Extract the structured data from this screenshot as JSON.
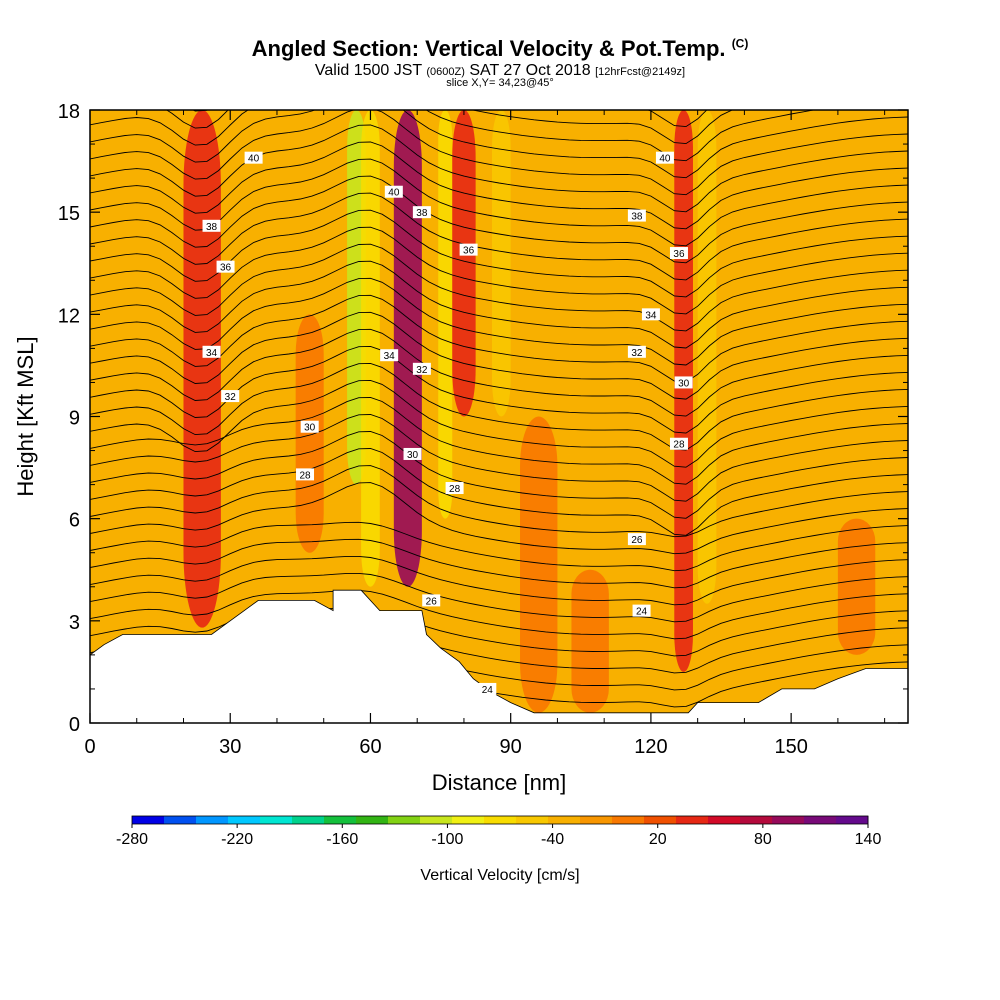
{
  "titles": {
    "main": "Angled Section: Vertical Velocity & Pot.Temp.",
    "copyright_mark": "(C)",
    "valid_prefix": "Valid 1500 JST",
    "valid_utc": "(0600Z)",
    "valid_date": "SAT 27 Oct 2018",
    "valid_fcst": "[12hrFcst@2149z]",
    "slice": "slice X,Y= 34,23@45°"
  },
  "chart_data": {
    "type": "heatmap",
    "title": "Angled Section: Vertical Velocity & Pot.Temp.",
    "xlabel": "Distance [nm]",
    "ylabel": "Height [Kft MSL]",
    "xlim": [
      0,
      175
    ],
    "ylim": [
      0,
      18
    ],
    "x_ticks": [
      "0",
      "30",
      "60",
      "90",
      "120",
      "150"
    ],
    "y_ticks": [
      "0",
      "3",
      "6",
      "9",
      "12",
      "15",
      "18"
    ],
    "background_fill_color": "#F8B000",
    "terrain_color": "#FFFFFF",
    "terrain_profile": [
      {
        "x": 0,
        "top": 2.0
      },
      {
        "x": 3,
        "top": 2.3
      },
      {
        "x": 7,
        "top": 2.6
      },
      {
        "x": 14,
        "top": 2.6
      },
      {
        "x": 26,
        "top": 2.6
      },
      {
        "x": 30,
        "top": 3.0
      },
      {
        "x": 33,
        "top": 3.3
      },
      {
        "x": 36,
        "top": 3.6
      },
      {
        "x": 48,
        "top": 3.6
      },
      {
        "x": 52,
        "top": 3.3
      },
      {
        "x": 52,
        "top": 3.9
      },
      {
        "x": 58,
        "top": 3.9
      },
      {
        "x": 62,
        "top": 3.3
      },
      {
        "x": 71,
        "top": 3.3
      },
      {
        "x": 72,
        "top": 2.6
      },
      {
        "x": 75,
        "top": 2.2
      },
      {
        "x": 79,
        "top": 1.8
      },
      {
        "x": 82,
        "top": 1.3
      },
      {
        "x": 86,
        "top": 0.9
      },
      {
        "x": 90,
        "top": 0.6
      },
      {
        "x": 95,
        "top": 0.3
      },
      {
        "x": 128,
        "top": 0.3
      },
      {
        "x": 130,
        "top": 0.6
      },
      {
        "x": 143,
        "top": 0.6
      },
      {
        "x": 148,
        "top": 1.0
      },
      {
        "x": 155,
        "top": 1.0
      },
      {
        "x": 160,
        "top": 1.3
      },
      {
        "x": 166,
        "top": 1.6
      },
      {
        "x": 175,
        "top": 1.6
      }
    ],
    "velocity_bands": [
      {
        "x_center": 24,
        "width": 8,
        "value": 60,
        "y_from": 2.8,
        "y_to": 18
      },
      {
        "x_center": 47,
        "width": 6,
        "value": 20,
        "y_from": 5,
        "y_to": 12
      },
      {
        "x_center": 57,
        "width": 4,
        "value": -100,
        "y_from": 7,
        "y_to": 18
      },
      {
        "x_center": 60,
        "width": 4,
        "value": -60,
        "y_from": 4,
        "y_to": 18
      },
      {
        "x_center": 68,
        "width": 6,
        "value": 120,
        "y_from": 4,
        "y_to": 18
      },
      {
        "x_center": 76,
        "width": 3,
        "value": -60,
        "y_from": 6,
        "y_to": 18
      },
      {
        "x_center": 80,
        "width": 5,
        "value": 60,
        "y_from": 9,
        "y_to": 18
      },
      {
        "x_center": 88,
        "width": 4,
        "value": -40,
        "y_from": 9,
        "y_to": 18
      },
      {
        "x_center": 96,
        "width": 8,
        "value": 20,
        "y_from": 0.3,
        "y_to": 9
      },
      {
        "x_center": 107,
        "width": 8,
        "value": 20,
        "y_from": 0.3,
        "y_to": 4.5
      },
      {
        "x_center": 127,
        "width": 4,
        "value": 60,
        "y_from": 1.5,
        "y_to": 18
      },
      {
        "x_center": 132,
        "width": 4,
        "value": -40,
        "y_from": 3.5,
        "y_to": 18
      },
      {
        "x_center": 164,
        "width": 8,
        "value": 20,
        "y_from": 2,
        "y_to": 6
      }
    ],
    "contour_levels": [
      24,
      26,
      28,
      30,
      32,
      34,
      36,
      38,
      40
    ],
    "contour_labels": [
      {
        "text": "40",
        "x": 35,
        "y": 16.6
      },
      {
        "text": "38",
        "x": 26,
        "y": 14.6
      },
      {
        "text": "36",
        "x": 29,
        "y": 13.4
      },
      {
        "text": "34",
        "x": 26,
        "y": 10.9
      },
      {
        "text": "32",
        "x": 30,
        "y": 9.6
      },
      {
        "text": "30",
        "x": 47,
        "y": 8.7
      },
      {
        "text": "28",
        "x": 46,
        "y": 7.3
      },
      {
        "text": "40",
        "x": 65,
        "y": 15.6
      },
      {
        "text": "38",
        "x": 71,
        "y": 15.0
      },
      {
        "text": "36",
        "x": 81,
        "y": 13.9
      },
      {
        "text": "34",
        "x": 64,
        "y": 10.8
      },
      {
        "text": "32",
        "x": 71,
        "y": 10.4
      },
      {
        "text": "30",
        "x": 69,
        "y": 7.9
      },
      {
        "text": "28",
        "x": 78,
        "y": 6.9
      },
      {
        "text": "26",
        "x": 73,
        "y": 3.6
      },
      {
        "text": "24",
        "x": 85,
        "y": 1.0
      },
      {
        "text": "40",
        "x": 123,
        "y": 16.6
      },
      {
        "text": "38",
        "x": 117,
        "y": 14.9
      },
      {
        "text": "36",
        "x": 126,
        "y": 13.8
      },
      {
        "text": "34",
        "x": 120,
        "y": 12.0
      },
      {
        "text": "32",
        "x": 117,
        "y": 10.9
      },
      {
        "text": "30",
        "x": 127,
        "y": 10.0
      },
      {
        "text": "28",
        "x": 126,
        "y": 8.2
      },
      {
        "text": "26",
        "x": 117,
        "y": 5.4
      },
      {
        "text": "24",
        "x": 118,
        "y": 3.3
      }
    ]
  },
  "colorbar": {
    "label": "Vertical Velocity [cm/s]",
    "tick_labels": [
      "-280",
      "-220",
      "-160",
      "-100",
      "-40",
      "20",
      "80",
      "140"
    ],
    "colors": [
      "#0000E6",
      "#0050F0",
      "#0096FF",
      "#00C8FF",
      "#00E6D2",
      "#00D28C",
      "#14C03C",
      "#32B414",
      "#82D214",
      "#C8E61E",
      "#F0F014",
      "#F8DC00",
      "#F8C800",
      "#F8B000",
      "#F89600",
      "#F87800",
      "#F05000",
      "#E62814",
      "#D20A28",
      "#B40A3C",
      "#960A5A",
      "#780A78",
      "#640A8C"
    ],
    "min": -280,
    "max": 140,
    "step": 20
  }
}
